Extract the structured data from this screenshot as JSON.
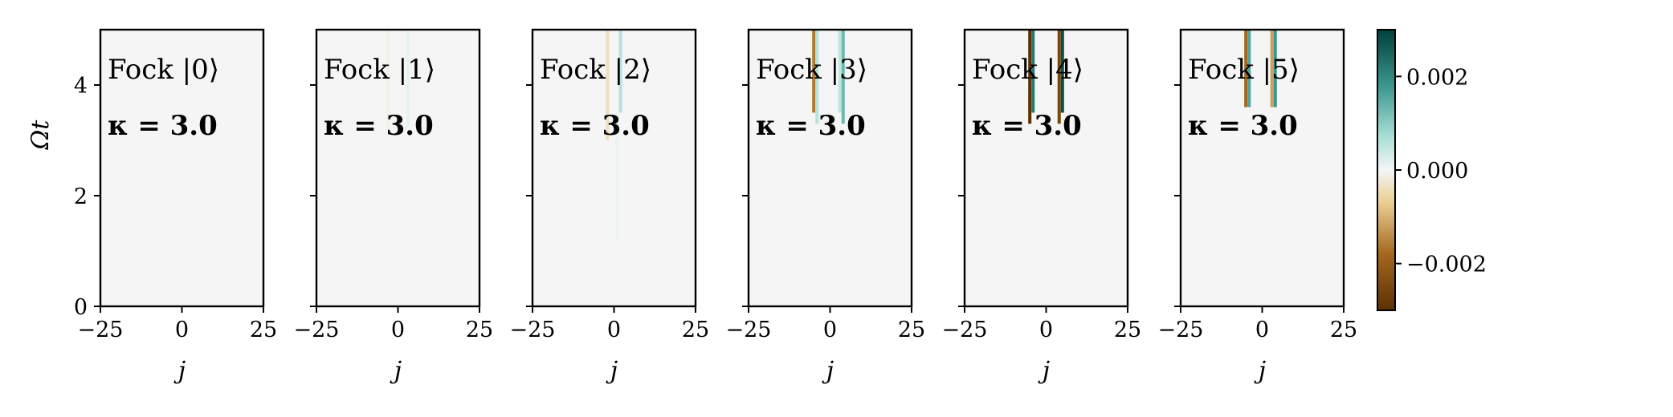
{
  "chart_data": {
    "type": "heatmap",
    "ylabel": "Ωt",
    "xlabel": "j",
    "xlim": [
      -25,
      25
    ],
    "ylim": [
      0,
      5
    ],
    "xticks": [
      -25,
      0,
      25
    ],
    "yticks": [
      0,
      2,
      4
    ],
    "colorbar": {
      "colormap": "BrBG",
      "vmin": -0.003,
      "vmax": 0.003,
      "ticks": [
        -0.002,
        0.0,
        0.002
      ],
      "tick_labels": [
        "−0.002",
        "0.000",
        "0.002"
      ],
      "low_color": "#5c3103",
      "mid_color": "#f5f5f5",
      "high_color": "#00403a"
    },
    "panels": [
      {
        "state_label": "Fock |0⟩",
        "kappa_label": "κ = 3.0",
        "features": []
      },
      {
        "state_label": "Fock |1⟩",
        "kappa_label": "κ = 3.0",
        "features": [
          {
            "j": -3,
            "t_start": 3.2,
            "t_end": 5.0,
            "value": -0.0001
          },
          {
            "j": 3,
            "t_start": 3.2,
            "t_end": 5.0,
            "value": 0.0001
          }
        ]
      },
      {
        "state_label": "Fock |2⟩",
        "kappa_label": "κ = 3.0",
        "features": [
          {
            "j": -2,
            "t_start": 3.0,
            "t_end": 5.0,
            "value": -0.0004
          },
          {
            "j": 2,
            "t_start": 3.5,
            "t_end": 5.0,
            "value": 0.0006
          },
          {
            "j": 1,
            "t_start": 1.2,
            "t_end": 3.5,
            "value": 0.0001
          }
        ]
      },
      {
        "state_label": "Fock |3⟩",
        "kappa_label": "κ = 3.0",
        "features": [
          {
            "j": -5,
            "t_start": 3.5,
            "t_end": 5.0,
            "value": -0.0016
          },
          {
            "j": -4,
            "t_start": 3.3,
            "t_end": 5.0,
            "value": 0.0006
          },
          {
            "j": 3,
            "t_start": 3.5,
            "t_end": 5.0,
            "value": 0.0005
          },
          {
            "j": 4,
            "t_start": 3.3,
            "t_end": 5.0,
            "value": 0.0013
          }
        ]
      },
      {
        "state_label": "Fock |4⟩",
        "kappa_label": "κ = 3.0",
        "features": [
          {
            "j": -5,
            "t_start": 3.3,
            "t_end": 5.0,
            "value": -0.003
          },
          {
            "j": -4,
            "t_start": 3.5,
            "t_end": 5.0,
            "value": 0.0022
          },
          {
            "j": 4,
            "t_start": 3.3,
            "t_end": 5.0,
            "value": -0.0025
          },
          {
            "j": 5,
            "t_start": 3.5,
            "t_end": 5.0,
            "value": 0.0028
          }
        ]
      },
      {
        "state_label": "Fock |5⟩",
        "kappa_label": "κ = 3.0",
        "features": [
          {
            "j": -5,
            "t_start": 3.6,
            "t_end": 5.0,
            "value": -0.0018
          },
          {
            "j": -4,
            "t_start": 3.6,
            "t_end": 5.0,
            "value": 0.0016
          },
          {
            "j": 3,
            "t_start": 3.6,
            "t_end": 5.0,
            "value": -0.0012
          },
          {
            "j": 4,
            "t_start": 3.6,
            "t_end": 5.0,
            "value": 0.0018
          }
        ]
      }
    ]
  }
}
